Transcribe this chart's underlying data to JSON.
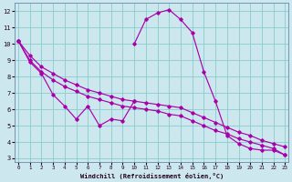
{
  "xlabel": "Windchill (Refroidissement éolien,°C)",
  "background_color": "#cce8ee",
  "grid_color": "#88cccc",
  "line_color": "#aa00aa",
  "x_values": [
    0,
    1,
    2,
    3,
    4,
    5,
    6,
    7,
    8,
    9,
    10,
    11,
    12,
    13,
    14,
    15,
    16,
    17,
    18,
    19,
    20,
    21,
    22,
    23
  ],
  "series": {
    "jagged": [
      10.2,
      8.9,
      8.2,
      6.9,
      6.2,
      5.4,
      6.2,
      5.0,
      5.4,
      5.3,
      6.5,
      null,
      null,
      null,
      null,
      null,
      null,
      null,
      null,
      null,
      null,
      null,
      null,
      null
    ],
    "peak": [
      null,
      null,
      null,
      null,
      null,
      null,
      null,
      null,
      null,
      null,
      10.0,
      11.5,
      11.9,
      12.1,
      11.5,
      10.7,
      8.3,
      6.5,
      4.4,
      3.9,
      3.6,
      3.5,
      3.5,
      3.2
    ],
    "upper": [
      10.2,
      9.3,
      8.6,
      8.2,
      7.8,
      7.5,
      7.2,
      7.0,
      6.8,
      6.6,
      6.5,
      6.4,
      6.3,
      6.2,
      6.1,
      5.8,
      5.5,
      5.2,
      4.9,
      4.6,
      4.4,
      4.1,
      3.9,
      3.7
    ],
    "lower": [
      10.2,
      9.0,
      8.3,
      7.8,
      7.4,
      7.1,
      6.8,
      6.6,
      6.4,
      6.2,
      6.1,
      6.0,
      5.9,
      5.7,
      5.6,
      5.3,
      5.0,
      4.7,
      4.5,
      4.2,
      4.0,
      3.8,
      3.6,
      3.2
    ]
  },
  "ylim": [
    2.8,
    12.5
  ],
  "xlim": [
    -0.3,
    23.3
  ],
  "yticks": [
    3,
    4,
    5,
    6,
    7,
    8,
    9,
    10,
    11,
    12
  ],
  "xticks": [
    0,
    1,
    2,
    3,
    4,
    5,
    6,
    7,
    8,
    9,
    10,
    11,
    12,
    13,
    14,
    15,
    16,
    17,
    18,
    19,
    20,
    21,
    22,
    23
  ]
}
